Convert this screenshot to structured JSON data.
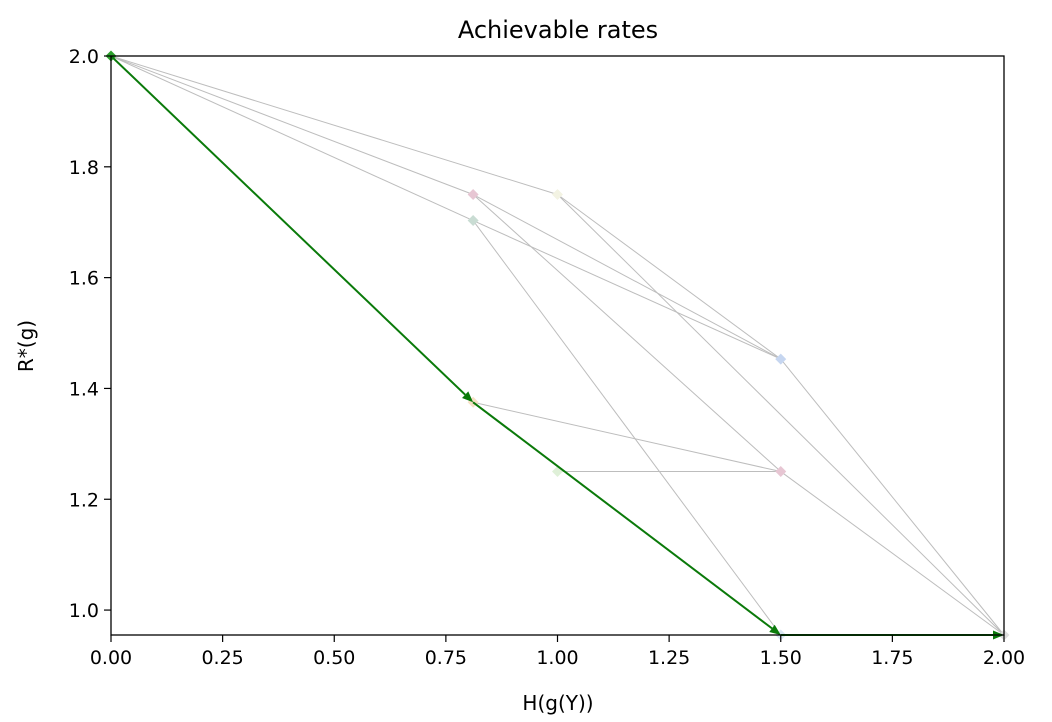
{
  "chart_data": {
    "type": "scatter",
    "title": "Achievable rates",
    "xlabel": "H(g(Y))",
    "ylabel": "R*(g)",
    "xlim": [
      0.0,
      2.0
    ],
    "ylim": [
      0.955,
      2.0
    ],
    "x_ticks": [
      0.0,
      0.25,
      0.5,
      0.75,
      1.0,
      1.25,
      1.5,
      1.75,
      2.0
    ],
    "x_tick_labels": [
      "0.00",
      "0.25",
      "0.50",
      "0.75",
      "1.00",
      "1.25",
      "1.50",
      "1.75",
      "2.00"
    ],
    "y_ticks": [
      1.0,
      1.2,
      1.4,
      1.6,
      1.8,
      2.0
    ],
    "y_tick_labels": [
      "1.0",
      "1.2",
      "1.4",
      "1.6",
      "1.8",
      "2.0"
    ],
    "grid": false,
    "points": [
      {
        "x": 0.0,
        "y": 2.0,
        "color": "#2ca02c"
      },
      {
        "x": 0.811,
        "y": 1.75,
        "color": "#e7c6d3"
      },
      {
        "x": 1.0,
        "y": 1.75,
        "color": "#f3f3e3"
      },
      {
        "x": 0.811,
        "y": 1.703,
        "color": "#c9dcd3"
      },
      {
        "x": 1.5,
        "y": 1.453,
        "color": "#c6d6f0"
      },
      {
        "x": 0.811,
        "y": 1.375,
        "color": "#f6e1c6"
      },
      {
        "x": 1.0,
        "y": 1.25,
        "color": "#dff0d8"
      },
      {
        "x": 1.5,
        "y": 1.25,
        "color": "#e7c6d3"
      },
      {
        "x": 1.5,
        "y": 0.955,
        "color": "#d9e6f2"
      },
      {
        "x": 2.0,
        "y": 0.955,
        "color": "#dddddd"
      }
    ],
    "gray_edges": [
      [
        [
          0.0,
          2.0
        ],
        [
          0.811,
          1.75
        ]
      ],
      [
        [
          0.0,
          2.0
        ],
        [
          1.0,
          1.75
        ]
      ],
      [
        [
          0.0,
          2.0
        ],
        [
          0.811,
          1.703
        ]
      ],
      [
        [
          0.0,
          2.0
        ],
        [
          0.811,
          1.375
        ]
      ],
      [
        [
          0.811,
          1.75
        ],
        [
          1.5,
          1.453
        ]
      ],
      [
        [
          0.811,
          1.75
        ],
        [
          1.5,
          1.25
        ]
      ],
      [
        [
          0.811,
          1.703
        ],
        [
          1.5,
          1.453
        ]
      ],
      [
        [
          0.811,
          1.703
        ],
        [
          1.5,
          0.955
        ]
      ],
      [
        [
          1.0,
          1.75
        ],
        [
          1.5,
          1.453
        ]
      ],
      [
        [
          1.0,
          1.75
        ],
        [
          2.0,
          0.955
        ]
      ],
      [
        [
          0.811,
          1.375
        ],
        [
          1.5,
          1.25
        ]
      ],
      [
        [
          1.0,
          1.25
        ],
        [
          1.5,
          1.25
        ]
      ],
      [
        [
          1.5,
          1.453
        ],
        [
          2.0,
          0.955
        ]
      ],
      [
        [
          1.5,
          1.25
        ],
        [
          2.0,
          0.955
        ]
      ],
      [
        [
          1.5,
          0.955
        ],
        [
          2.0,
          0.955
        ]
      ]
    ],
    "red_dashed_line": [
      [
        0.811,
        1.375
      ],
      [
        1.5,
        0.955
      ]
    ],
    "green_arrows": [
      [
        [
          0.0,
          2.0
        ],
        [
          0.811,
          1.375
        ]
      ],
      [
        [
          0.811,
          1.375
        ],
        [
          1.5,
          0.955
        ]
      ],
      [
        [
          1.5,
          0.955
        ],
        [
          2.0,
          0.955
        ]
      ]
    ],
    "colors": {
      "gray_edge": "#bdbdbd",
      "green_path": "#0a7a0a",
      "red_dashed": "#e02020"
    }
  }
}
